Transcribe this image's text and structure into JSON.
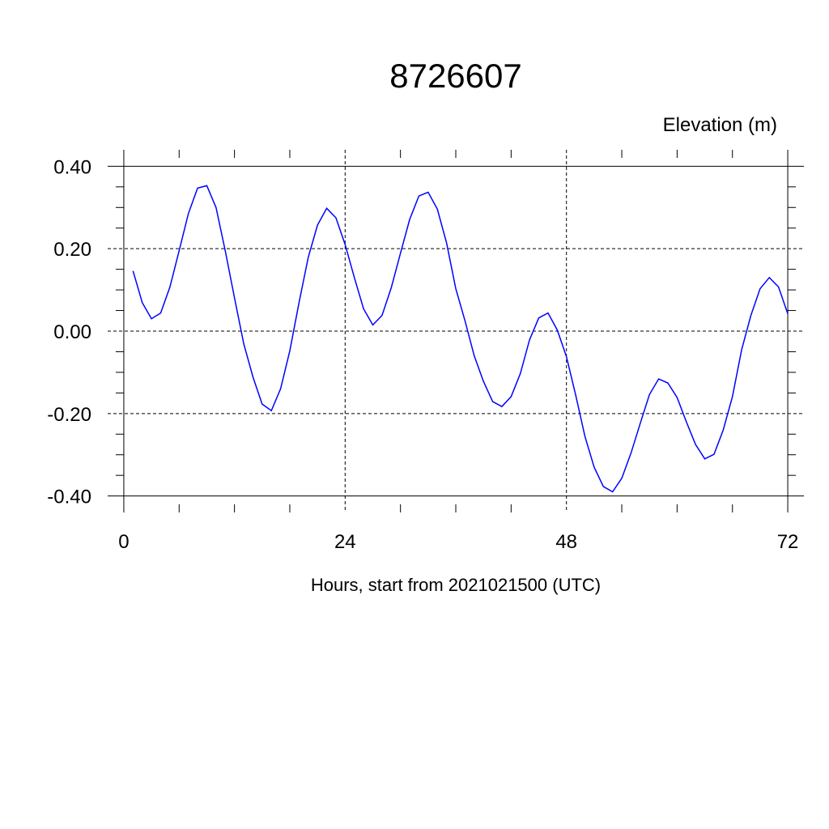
{
  "chart_data": {
    "type": "line",
    "title": "8726607",
    "ylabel": "Elevation (m)",
    "xlabel": "Hours, start from 2021021500 (UTC)",
    "xlim": [
      -1.75,
      73.75
    ],
    "ylim": [
      -0.44,
      0.44
    ],
    "x_ticks": [
      0,
      24,
      48,
      72
    ],
    "x_tick_labels": [
      "0",
      "24",
      "48",
      "72"
    ],
    "x_minor_step": 6,
    "y_ticks": [
      0.4,
      0.2,
      0.0,
      -0.2,
      -0.4
    ],
    "y_tick_labels": [
      "0.40",
      "0.20",
      "0.00",
      "-0.20",
      "-0.40"
    ],
    "y_minor_step": 0.05,
    "grid": true,
    "line_color": "#0000ff",
    "series": [
      {
        "x": [
          1,
          2,
          3,
          4,
          5,
          6,
          7,
          8,
          9,
          10,
          11,
          12,
          13,
          14,
          15,
          16,
          17,
          18,
          19,
          20,
          21,
          22,
          23,
          24,
          25,
          26,
          27,
          28,
          29,
          30,
          31,
          32,
          33,
          34,
          35,
          36,
          37,
          38,
          39,
          40,
          41,
          42,
          43,
          44,
          45,
          46,
          47,
          48,
          49,
          50,
          51,
          52,
          53,
          54,
          55,
          56,
          57,
          58,
          59,
          60,
          61,
          62,
          63,
          64,
          65,
          66,
          67,
          68,
          69,
          70,
          71,
          72
        ],
        "values": [
          0.146,
          0.069,
          0.03,
          0.044,
          0.107,
          0.195,
          0.285,
          0.347,
          0.353,
          0.3,
          0.195,
          0.081,
          -0.03,
          -0.111,
          -0.177,
          -0.193,
          -0.14,
          -0.048,
          0.069,
          0.179,
          0.257,
          0.298,
          0.275,
          0.21,
          0.13,
          0.054,
          0.015,
          0.038,
          0.105,
          0.189,
          0.271,
          0.328,
          0.337,
          0.296,
          0.214,
          0.103,
          0.025,
          -0.06,
          -0.122,
          -0.171,
          -0.183,
          -0.159,
          -0.103,
          -0.021,
          0.032,
          0.044,
          0.003,
          -0.062,
          -0.155,
          -0.255,
          -0.33,
          -0.377,
          -0.39,
          -0.357,
          -0.296,
          -0.224,
          -0.154,
          -0.116,
          -0.126,
          -0.161,
          -0.22,
          -0.275,
          -0.31,
          -0.299,
          -0.24,
          -0.159,
          -0.045,
          0.038,
          0.103,
          0.13,
          0.107,
          0.042
        ]
      }
    ]
  }
}
